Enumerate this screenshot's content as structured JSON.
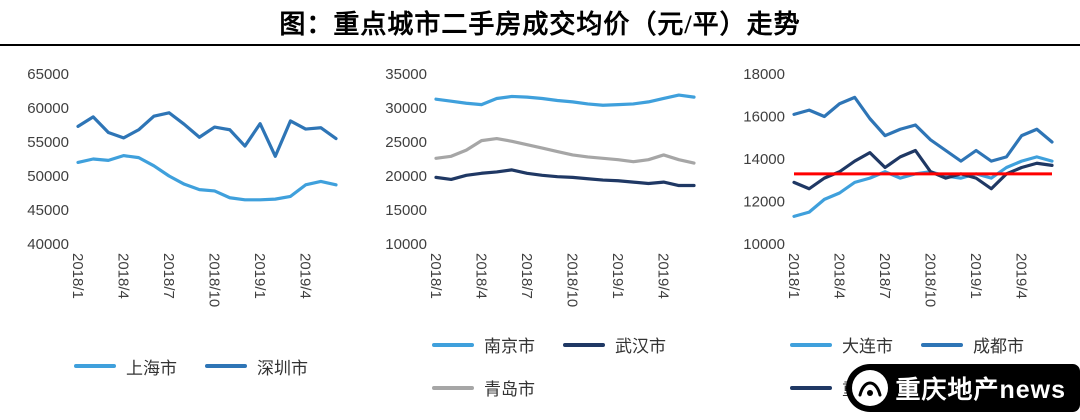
{
  "page": {
    "title": "图：重点城市二手房成交均价（元/平）走势"
  },
  "watermark": {
    "text": "重庆地产news"
  },
  "colors": {
    "light_blue": "#3FA0DC",
    "medium_blue": "#2E75B6",
    "navy": "#1F3864",
    "gray": "#A6A6A6",
    "red": "#FF0000",
    "axis_text": "#3f3f3f"
  },
  "chart_data": [
    {
      "type": "line",
      "title": "",
      "x_ticks": [
        "2018/1",
        "2018/4",
        "2018/7",
        "2018/10",
        "2019/1",
        "2019/4"
      ],
      "x_tick_indices": [
        0,
        3,
        6,
        9,
        12,
        15
      ],
      "ylim": [
        40000,
        65000
      ],
      "ystep": 5000,
      "grid": false,
      "legend_position": "bottom",
      "series": [
        {
          "name": "上海市",
          "color": "#3FA0DC",
          "values": [
            52000,
            52500,
            52300,
            53000,
            52700,
            51500,
            50000,
            48800,
            48000,
            47800,
            46800,
            46500,
            46500,
            46600,
            47000,
            48700,
            49200,
            48700
          ]
        },
        {
          "name": "深圳市",
          "color": "#2E75B6",
          "values": [
            57300,
            58700,
            56400,
            55600,
            56800,
            58800,
            59300,
            57600,
            55700,
            57200,
            56800,
            54400,
            57700,
            52900,
            58100,
            56900,
            57100,
            55500
          ]
        }
      ]
    },
    {
      "type": "line",
      "title": "",
      "x_ticks": [
        "2018/1",
        "2018/4",
        "2018/7",
        "2018/10",
        "2019/1",
        "2019/4"
      ],
      "x_tick_indices": [
        0,
        3,
        6,
        9,
        12,
        15
      ],
      "ylim": [
        10000,
        35000
      ],
      "ystep": 5000,
      "grid": false,
      "legend_position": "bottom",
      "series": [
        {
          "name": "南京市",
          "color": "#3FA0DC",
          "values": [
            31300,
            31000,
            30700,
            30500,
            31400,
            31700,
            31600,
            31400,
            31100,
            30900,
            30600,
            30400,
            30500,
            30600,
            30900,
            31400,
            31900,
            31600
          ]
        },
        {
          "name": "武汉市",
          "color": "#1F3864",
          "values": [
            19800,
            19500,
            20100,
            20400,
            20600,
            20900,
            20400,
            20100,
            19900,
            19800,
            19600,
            19400,
            19300,
            19100,
            18900,
            19100,
            18600,
            18600
          ]
        },
        {
          "name": "青岛市",
          "color": "#A6A6A6",
          "values": [
            22600,
            22900,
            23800,
            25200,
            25500,
            25100,
            24600,
            24100,
            23600,
            23100,
            22800,
            22600,
            22400,
            22100,
            22400,
            23100,
            22400,
            21900
          ]
        }
      ]
    },
    {
      "type": "line",
      "title": "",
      "x_ticks": [
        "2018/1",
        "2018/4",
        "2018/7",
        "2018/10",
        "2019/1",
        "2019/4"
      ],
      "x_tick_indices": [
        0,
        3,
        6,
        9,
        12,
        15
      ],
      "ylim": [
        10000,
        18000
      ],
      "ystep": 2000,
      "grid": false,
      "legend_position": "bottom",
      "reference_line": {
        "value": 13300,
        "color": "#FF0000"
      },
      "series": [
        {
          "name": "大连市",
          "color": "#3FA0DC",
          "values": [
            11300,
            11500,
            12100,
            12400,
            12900,
            13100,
            13400,
            13100,
            13300,
            13400,
            13200,
            13100,
            13300,
            13100,
            13600,
            13900,
            14100,
            13900
          ]
        },
        {
          "name": "成都市",
          "color": "#2E75B6",
          "values": [
            16100,
            16300,
            16000,
            16600,
            16900,
            15900,
            15100,
            15400,
            15600,
            14900,
            14400,
            13900,
            14400,
            13900,
            14100,
            15100,
            15400,
            14800
          ]
        },
        {
          "name": "重庆市",
          "color": "#1F3864",
          "values": [
            12900,
            12600,
            13100,
            13400,
            13900,
            14300,
            13600,
            14100,
            14400,
            13400,
            13100,
            13300,
            13100,
            12600,
            13300,
            13600,
            13800,
            13700
          ]
        }
      ]
    }
  ]
}
